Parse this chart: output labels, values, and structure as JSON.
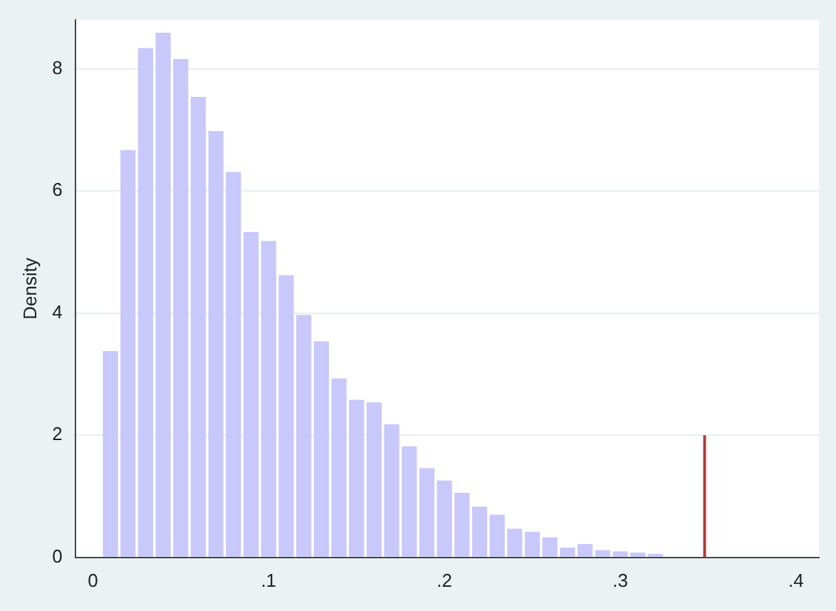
{
  "chart_data": {
    "type": "histogram",
    "ylabel": "Density",
    "bins": [
      0.005,
      0.015,
      0.025,
      0.035,
      0.045,
      0.055,
      0.065,
      0.075,
      0.085,
      0.095,
      0.105,
      0.115,
      0.125,
      0.135,
      0.145,
      0.155,
      0.165,
      0.175,
      0.185,
      0.195,
      0.205,
      0.215,
      0.225,
      0.235,
      0.245,
      0.255,
      0.265,
      0.275,
      0.285,
      0.295,
      0.305,
      0.315,
      0.325,
      0.335,
      0.345,
      0.355,
      0.365,
      0.375
    ],
    "values": [
      3.38,
      6.67,
      8.34,
      8.59,
      8.16,
      7.54,
      6.98,
      6.31,
      5.33,
      5.18,
      4.62,
      3.97,
      3.54,
      2.93,
      2.58,
      2.54,
      2.18,
      1.82,
      1.46,
      1.26,
      1.06,
      0.83,
      0.7,
      0.47,
      0.42,
      0.33,
      0.16,
      0.22,
      0.12,
      0.1,
      0.08,
      0.06,
      null,
      null,
      0,
      null,
      null
    ],
    "color": "#c8c8fa",
    "series": [
      {
        "type": "line",
        "color": "#b03a3a",
        "x": [
          0.348,
          0.348
        ],
        "values": [
          0,
          2
        ]
      }
    ],
    "xlim": [
      -0.01,
      0.413
    ],
    "ylim": [
      0,
      8.8
    ],
    "xticks": [
      {
        "value": 0,
        "label": "0"
      },
      {
        "value": 0.1,
        "label": ".1"
      },
      {
        "value": 0.2,
        "label": ".2"
      },
      {
        "value": 0.3,
        "label": ".3"
      },
      {
        "value": 0.4,
        "label": ".4"
      }
    ],
    "yticks": [
      0,
      2,
      4,
      6,
      8
    ],
    "grid": "y",
    "legend": false
  }
}
